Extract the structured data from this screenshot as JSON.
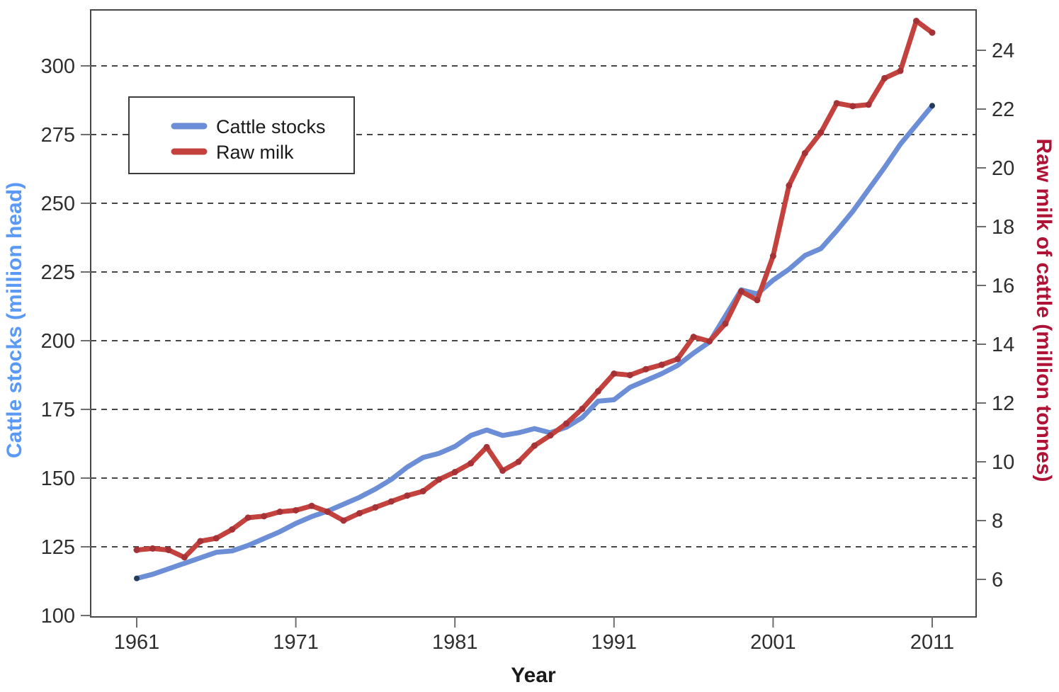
{
  "figure": {
    "background": "#ffffff",
    "frame_color": "#474747",
    "grid_color": "#474747",
    "tick_color": "#6e6e6e",
    "tick_label_color": "#2e2e2e"
  },
  "legend": {
    "position": "upper-left",
    "items": [
      {
        "label": "Cattle stocks",
        "color": "#6b8ed6"
      },
      {
        "label": "Raw milk",
        "color": "#c4423e"
      }
    ]
  },
  "axis_titles": {
    "x": "Year",
    "left": "Cattle stocks (million head)",
    "right": "Raw milk of cattle (million tonnes)",
    "left_color": "#5a9af6",
    "right_color": "#ae1336",
    "x_color": "#1a1a1a"
  },
  "chart_data": {
    "type": "line",
    "title": "",
    "xlabel": "Year",
    "ylabel_left": "Cattle stocks (million head)",
    "ylabel_right": "Raw milk of cattle (million tonnes)",
    "grid": "horizontal-dashed",
    "legend_position": "upper-left",
    "x_ticks": [
      1961,
      1971,
      1981,
      1991,
      2001,
      2011
    ],
    "left_ticks": [
      100,
      125,
      150,
      175,
      200,
      225,
      250,
      275,
      300
    ],
    "right_ticks": [
      6,
      8,
      10,
      12,
      14,
      16,
      18,
      20,
      22,
      24
    ],
    "left_range": [
      100,
      320
    ],
    "right_range": [
      4.7,
      25.3
    ],
    "x": [
      1961,
      1962,
      1963,
      1964,
      1965,
      1966,
      1967,
      1968,
      1969,
      1970,
      1971,
      1972,
      1973,
      1974,
      1975,
      1976,
      1977,
      1978,
      1979,
      1980,
      1981,
      1982,
      1983,
      1984,
      1985,
      1986,
      1987,
      1988,
      1989,
      1990,
      1991,
      1992,
      1993,
      1994,
      1995,
      1996,
      1997,
      1998,
      1999,
      2000,
      2001,
      2002,
      2003,
      2004,
      2005,
      2006,
      2007,
      2008,
      2009,
      2010,
      2011
    ],
    "series": [
      {
        "name": "Cattle stocks",
        "axis": "left",
        "units": "million head",
        "color": "#6b8ed6",
        "marker": "endpoints",
        "marker_color": "#263a5e",
        "values": [
          113.5,
          115,
          117,
          119,
          121,
          123,
          123.5,
          125.5,
          128,
          130.5,
          133.5,
          136,
          138,
          140.5,
          143,
          146,
          149.5,
          154,
          157.5,
          159,
          161.5,
          165.5,
          167.5,
          165.5,
          166.5,
          168,
          166.5,
          168.5,
          172,
          178,
          178.5,
          183,
          185.5,
          188,
          191,
          195.5,
          199.5,
          209,
          218.5,
          217,
          222,
          226,
          231,
          233.5,
          240,
          247,
          255,
          263,
          271.5,
          278.5,
          285.5
        ]
      },
      {
        "name": "Raw milk",
        "axis": "right",
        "units": "million tonnes",
        "color": "#c4423e",
        "marker": "every-point",
        "marker_color": "#a53236",
        "values": [
          7.0,
          7.05,
          7.0,
          6.75,
          7.3,
          7.4,
          7.7,
          8.1,
          8.15,
          8.3,
          8.35,
          8.5,
          8.3,
          8.0,
          8.25,
          8.45,
          8.65,
          8.85,
          9.0,
          9.4,
          9.65,
          9.95,
          10.5,
          9.7,
          10.0,
          10.55,
          10.9,
          11.3,
          11.8,
          12.4,
          13.0,
          12.95,
          13.15,
          13.3,
          13.5,
          14.25,
          14.1,
          14.7,
          15.8,
          15.5,
          17.0,
          19.4,
          20.5,
          21.2,
          22.2,
          22.1,
          22.15,
          23.05,
          23.3,
          25.0,
          24.6
        ]
      }
    ]
  }
}
